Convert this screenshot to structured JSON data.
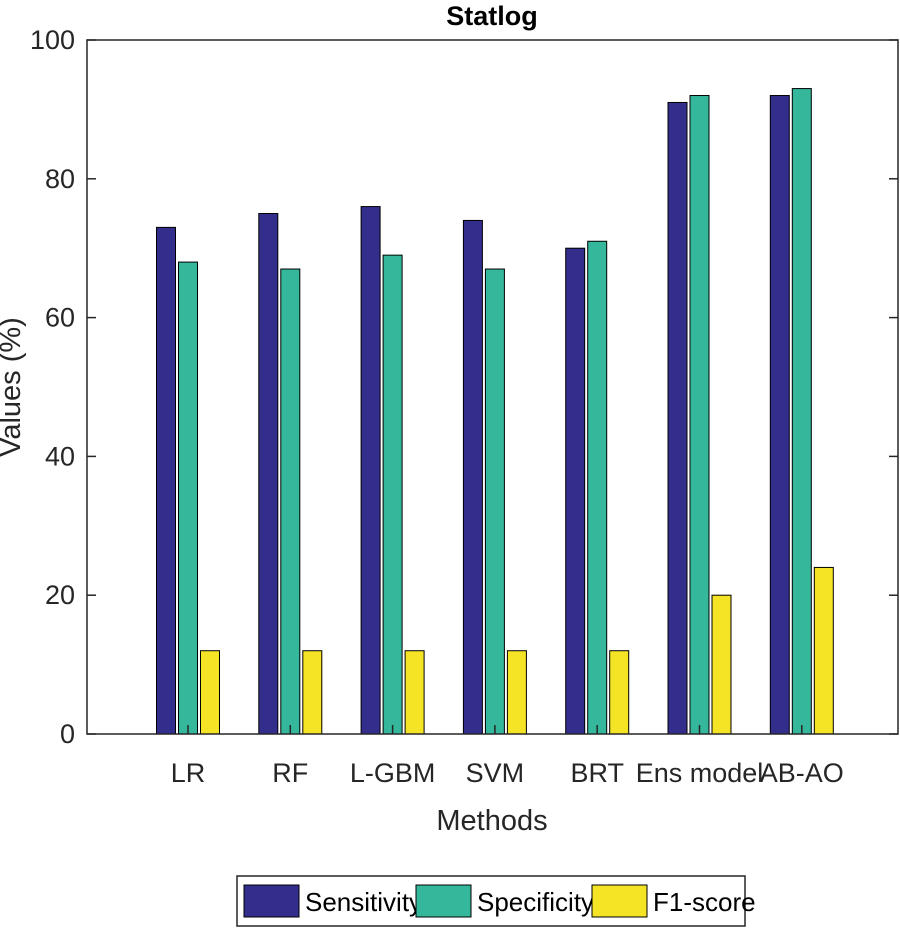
{
  "chart_data": {
    "type": "bar",
    "title": "Statlog",
    "xlabel": "Methods",
    "ylabel": "Values (%)",
    "ylim": [
      0,
      100
    ],
    "yticks": [
      0,
      20,
      40,
      60,
      80,
      100
    ],
    "categories": [
      "LR",
      "RF",
      "L-GBM",
      "SVM",
      "BRT",
      "Ens model",
      "AB-AO"
    ],
    "series": [
      {
        "name": "Sensitivity",
        "color": "#332d8c",
        "values": [
          73,
          75,
          76,
          74,
          70,
          91,
          92
        ]
      },
      {
        "name": "Specificity",
        "color": "#35b79b",
        "values": [
          68,
          67,
          69,
          67,
          71,
          92,
          93
        ]
      },
      {
        "name": "F1-score",
        "color": "#f5e425",
        "values": [
          12,
          12,
          12,
          12,
          12,
          20,
          24
        ]
      }
    ],
    "legend_position": "bottom"
  }
}
